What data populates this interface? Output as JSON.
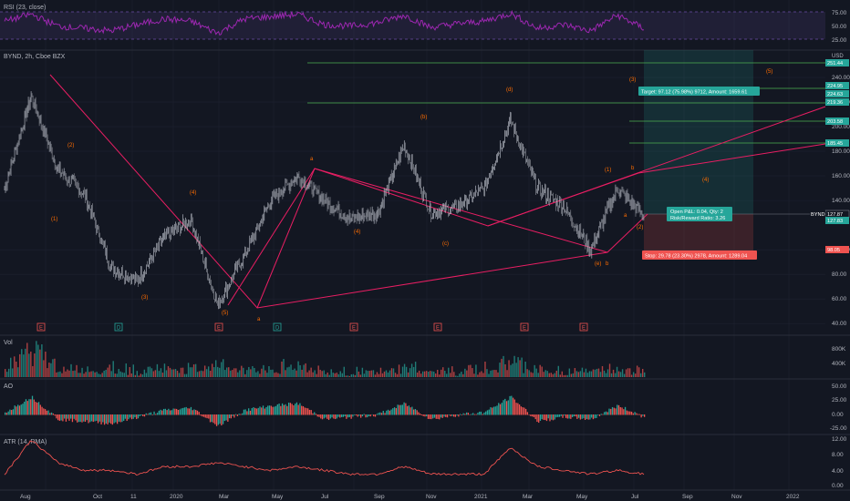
{
  "panes": {
    "rsi": {
      "title": "RSI (23, close)",
      "scale_labels": [
        "75.00",
        "50.00",
        "25.00"
      ],
      "line_color": "#9c27b0",
      "band_color": "#7e57c2"
    },
    "price": {
      "title": "BYND, 2h, Cboe BZX",
      "currency": "USD",
      "scale_labels": [
        "240.00",
        "220.00",
        "200.00",
        "180.00",
        "160.00",
        "140.00",
        "100.00",
        "80.00",
        "60.00",
        "40.00"
      ]
    },
    "volume": {
      "title": "Vol",
      "scale_labels": [
        "800K",
        "400K"
      ]
    },
    "ao": {
      "title": "AO",
      "scale_labels": [
        "50.00",
        "25.00",
        "0.00",
        "-25.00",
        "-50.00"
      ]
    },
    "atr": {
      "title": "ATR (14, RMA)",
      "scale_labels": [
        "12.00",
        "8.00",
        "4.00",
        "0.00"
      ]
    }
  },
  "time_axis": [
    "Aug",
    "Oct",
    "11",
    "2020",
    "Mar",
    "May",
    "Jul",
    "Sep",
    "Nov",
    "2021",
    "Mar",
    "May",
    "Jul",
    "Sep",
    "Nov",
    "2022"
  ],
  "price_badges": [
    {
      "text": "251.44",
      "color": "#26a69a"
    },
    {
      "text": "224.95",
      "color": "#26a69a"
    },
    {
      "text": "224.63",
      "color": "#26a69a"
    },
    {
      "text": "219.36",
      "color": "#26a69a"
    },
    {
      "text": "203.58",
      "color": "#26a69a"
    },
    {
      "text": "185.45",
      "color": "#26a69a"
    },
    {
      "text": "127.87",
      "color": "#131722"
    },
    {
      "text": "127.83",
      "color": "#26a69a"
    },
    {
      "text": "98.05",
      "color": "#ef5350"
    }
  ],
  "last_label": {
    "symbol": "BYND",
    "value": "127.87"
  },
  "position": {
    "target": "Target: 97.12 (75.98%) 9712, Amount: 1659.61",
    "open_pnl": "Open P&L: 0.04, Qty: 2",
    "risk_reward": "Risk/Reward Ratio: 3.26",
    "stop": "Stop: 29.78 (23.30%) 2978, Amount: 1289.04"
  },
  "wave_labels": [
    "(1)",
    "(2)",
    "(3)",
    "(4)",
    "(5)",
    "a",
    "(4)",
    "(5)",
    "(a)",
    "(b)",
    "(c)",
    "(d)",
    "(e)",
    "(1)",
    "(2)",
    "(3)",
    "(4)",
    "(5)",
    "a",
    "b"
  ],
  "earnings_markers": [
    "E",
    "E",
    "E",
    "E",
    "E",
    "E",
    "E"
  ],
  "dividend_markers": [
    "D",
    "D"
  ],
  "colors": {
    "background": "#131722",
    "up_candle": "#26a69a",
    "down_candle": "#ef5350",
    "wave_line": "#e91e63",
    "wave_label": "#ff6d00",
    "target_zone": "#26a69a",
    "stop_zone": "#ef5350",
    "atr_line": "#ef5350",
    "grid": "#1e2230"
  },
  "chart_data": [
    {
      "type": "line",
      "name": "BYND price",
      "x": [
        "2019-07",
        "2019-08",
        "2019-09",
        "2019-10",
        "2019-11",
        "2019-12",
        "2020-01",
        "2020-02",
        "2020-03",
        "2020-04",
        "2020-05",
        "2020-06",
        "2020-07",
        "2020-08",
        "2020-09",
        "2020-10",
        "2020-11",
        "2020-12",
        "2021-01",
        "2021-02",
        "2021-03",
        "2021-04",
        "2021-05",
        "2021-06",
        "2021-07"
      ],
      "y": [
        150,
        225,
        165,
        145,
        85,
        75,
        110,
        125,
        55,
        95,
        140,
        160,
        140,
        125,
        130,
        185,
        130,
        135,
        150,
        205,
        150,
        135,
        100,
        150,
        128
      ],
      "ylim": [
        35,
        260
      ]
    },
    {
      "type": "line",
      "name": "RSI",
      "ylim": [
        0,
        100
      ],
      "y": [
        55,
        70,
        45,
        40,
        35,
        48,
        60,
        55,
        30,
        60,
        65,
        70,
        48,
        45,
        52,
        68,
        42,
        50,
        55,
        72,
        40,
        48,
        35,
        68,
        40
      ]
    },
    {
      "type": "bar",
      "name": "Volume",
      "y": [
        300,
        900,
        250,
        200,
        350,
        200,
        300,
        250,
        400,
        300,
        250,
        400,
        200,
        150,
        180,
        300,
        200,
        180,
        250,
        500,
        200,
        150,
        250,
        300,
        150
      ]
    },
    {
      "type": "bar",
      "name": "AO",
      "ylim": [
        -50,
        50
      ],
      "y": [
        5,
        40,
        -10,
        -15,
        -20,
        -5,
        10,
        15,
        -25,
        10,
        20,
        25,
        -10,
        -5,
        0,
        25,
        -10,
        0,
        5,
        40,
        -15,
        -5,
        -10,
        20,
        -5
      ]
    },
    {
      "type": "line",
      "name": "ATR",
      "ylim": [
        0,
        12
      ],
      "y": [
        3,
        12,
        6,
        4,
        4,
        3,
        5,
        5,
        6,
        5,
        4,
        5,
        4,
        3,
        3,
        5,
        3,
        3,
        3,
        10,
        5,
        4,
        3,
        4,
        3
      ]
    }
  ]
}
